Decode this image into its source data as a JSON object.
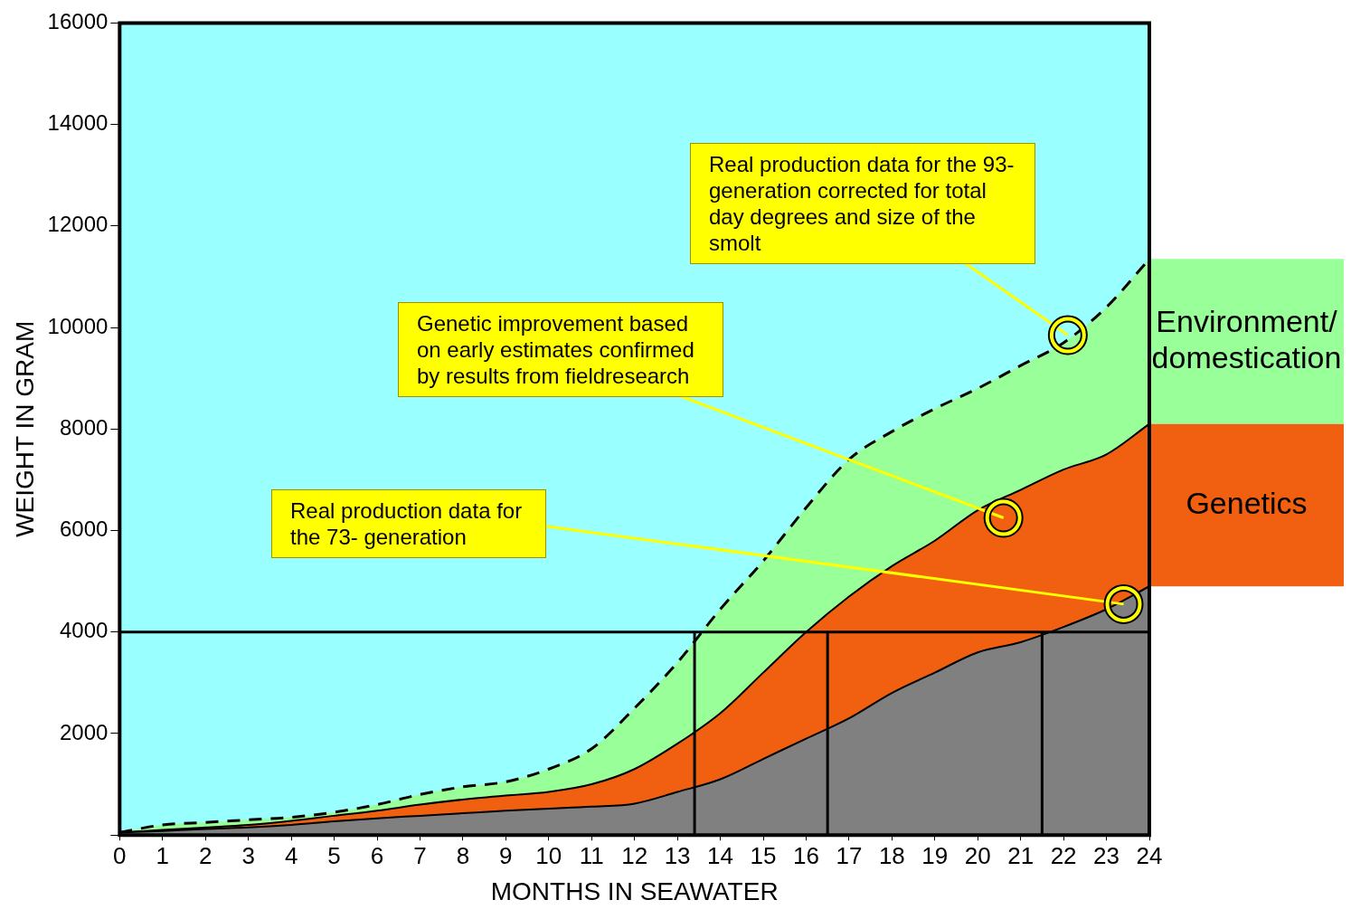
{
  "chart_data": {
    "type": "area",
    "xlabel": "MONTHS IN SEAWATER",
    "ylabel": "WEIGHT IN GRAM",
    "x": [
      0,
      1,
      2,
      3,
      4,
      5,
      6,
      7,
      8,
      9,
      10,
      11,
      12,
      13,
      14,
      15,
      16,
      17,
      18,
      19,
      20,
      21,
      22,
      23,
      24
    ],
    "series": [
      {
        "name": "Environment/ domestication",
        "color": "#99ff99",
        "line_style": "dashed",
        "values": [
          50,
          200,
          250,
          300,
          350,
          450,
          600,
          800,
          950,
          1050,
          1300,
          1700,
          2500,
          3400,
          4450,
          5400,
          6450,
          7400,
          7950,
          8400,
          8800,
          9250,
          9700,
          10400,
          11350
        ]
      },
      {
        "name": "Genetics",
        "color": "#f06010",
        "values": [
          50,
          100,
          150,
          200,
          280,
          380,
          480,
          600,
          700,
          780,
          850,
          1000,
          1300,
          1800,
          2400,
          3200,
          4000,
          4700,
          5300,
          5800,
          6400,
          6800,
          7200,
          7500,
          8100
        ]
      },
      {
        "color": "#808080",
        "values": [
          50,
          80,
          120,
          150,
          200,
          270,
          330,
          380,
          430,
          480,
          520,
          560,
          620,
          850,
          1100,
          1500,
          1900,
          2300,
          2800,
          3200,
          3600,
          3800,
          4100,
          4450,
          4900
        ]
      }
    ],
    "xlim": [
      0,
      24
    ],
    "xticks": [
      0,
      1,
      2,
      3,
      4,
      5,
      6,
      7,
      8,
      9,
      10,
      11,
      12,
      13,
      14,
      15,
      16,
      17,
      18,
      19,
      20,
      21,
      22,
      23,
      24
    ],
    "ylim": [
      0,
      16000
    ],
    "yticks": [
      {
        "value": 0,
        "label": null
      },
      2000,
      4000,
      6000,
      8000,
      10000,
      12000,
      14000,
      16000
    ],
    "legend": "right",
    "ref_lines": [
      {
        "axis": "y",
        "value": 4000,
        "color": "#000000"
      },
      {
        "axis": "x",
        "value": 13.4,
        "color": "#000000"
      },
      {
        "axis": "x",
        "value": 16.5,
        "color": "#000000"
      },
      {
        "axis": "x",
        "value": 21.5,
        "color": "#000000"
      }
    ],
    "annotations": [
      {
        "text": "Real production data for the 93-generation corrected for total day degrees and size of the smolt",
        "x": 22.1,
        "y": 9850
      },
      {
        "text": "Genetic improvement based on early estimates confirmed by results from fieldresearch",
        "x": 20.6,
        "y": 6250
      },
      {
        "text": "Real production data for the 73- generation",
        "x": 23.4,
        "y": 4550
      }
    ]
  }
}
